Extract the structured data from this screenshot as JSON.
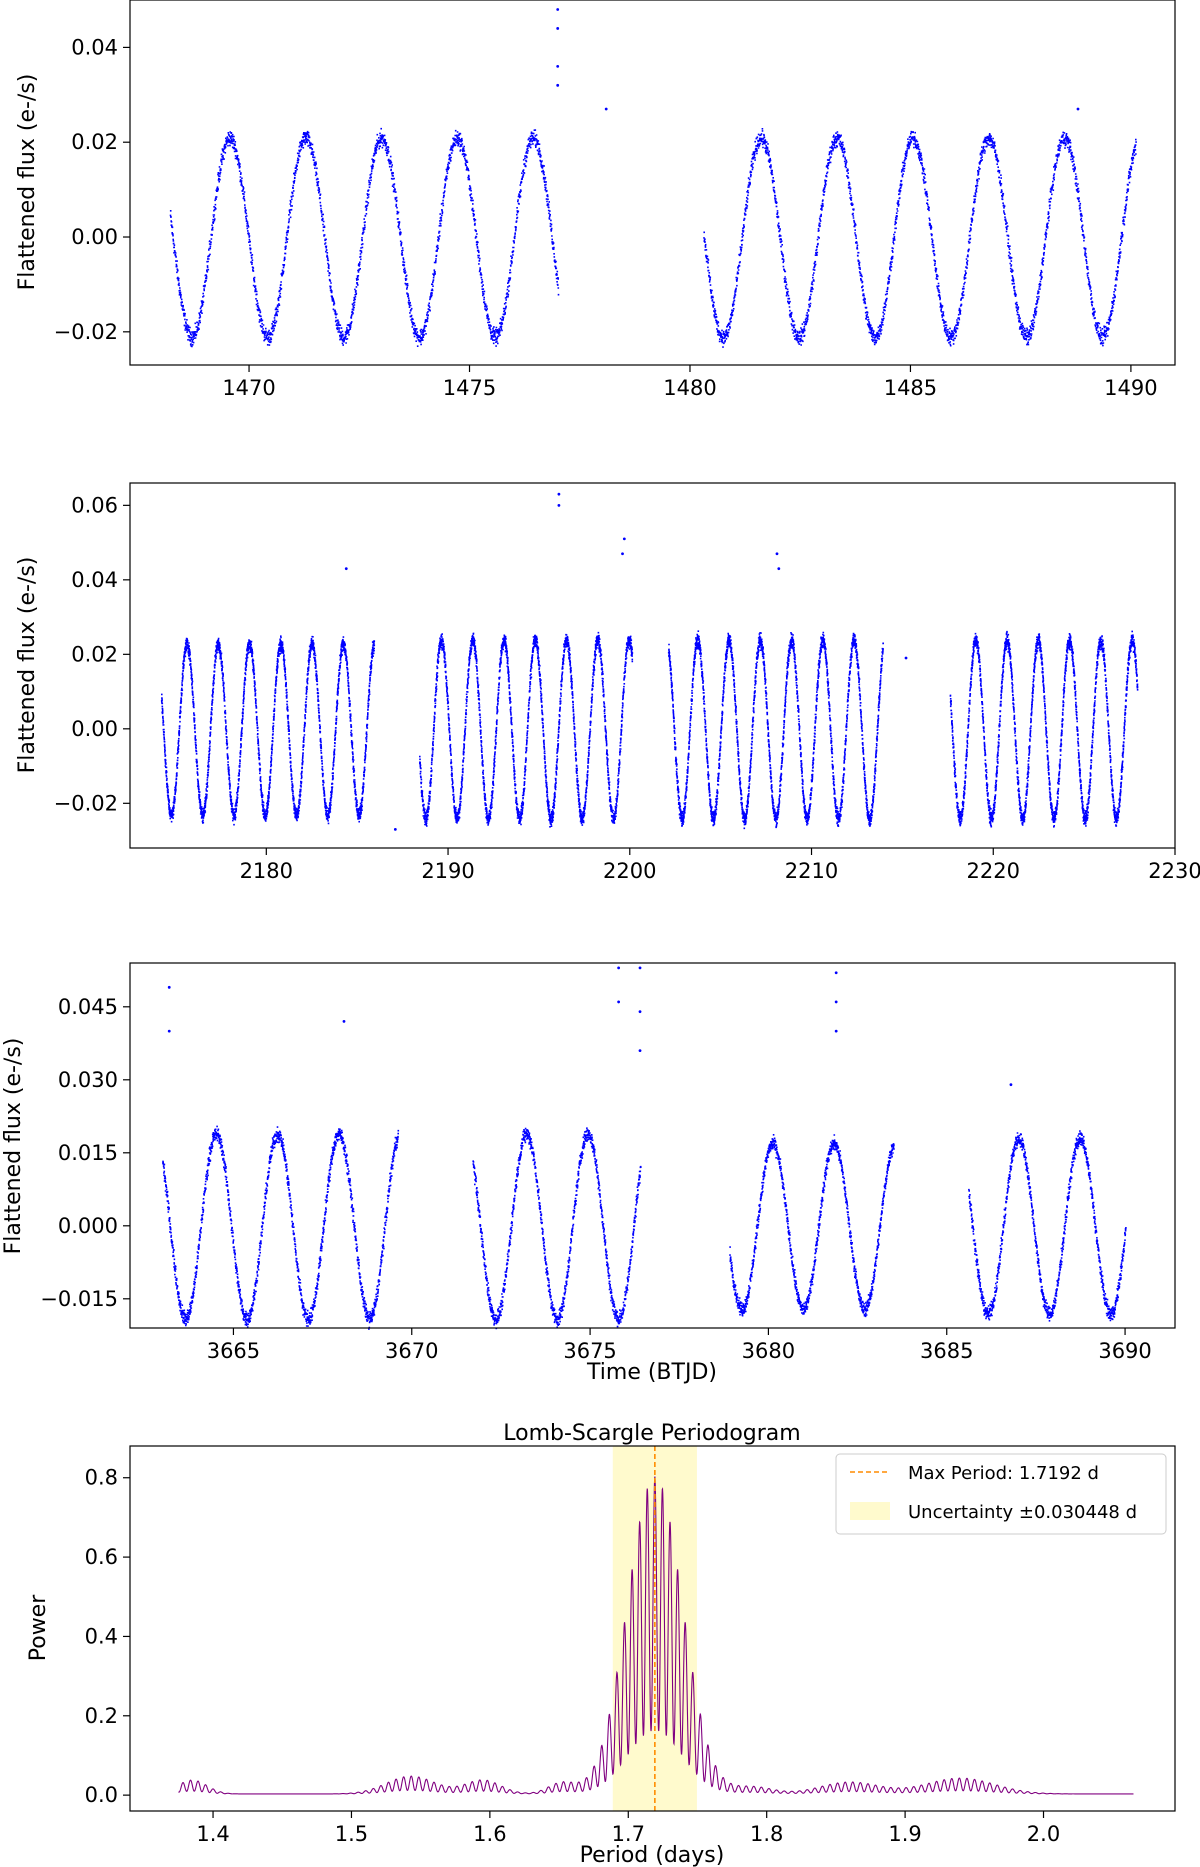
{
  "chart_data": [
    {
      "type": "scatter",
      "ylabel": "Flattened flux (e-/s)",
      "xlabel": "",
      "xlim": [
        1467.3,
        1491.0
      ],
      "ylim": [
        -0.027,
        0.05
      ],
      "xticks": [
        1470,
        1475,
        1480,
        1485,
        1490
      ],
      "xtick_labels": [
        "1470",
        "1475",
        "1480",
        "1485",
        "1490"
      ],
      "yticks": [
        -0.02,
        0.0,
        0.02,
        0.04
      ],
      "ytick_labels": [
        "−0.02",
        "0.00",
        "0.02",
        "0.04"
      ],
      "marker_color": "#0000ff",
      "series": [
        {
          "t_start": 1468.2,
          "t_end": 1477.0,
          "period": 1.72,
          "amplitude": 0.021,
          "phase_peak": 1469.55
        },
        {
          "t_start": 1480.3,
          "t_end": 1490.1,
          "period": 1.72,
          "amplitude": 0.021,
          "phase_peak": 1481.6
        }
      ],
      "outliers": [
        {
          "x": 1477.0,
          "y": 0.048
        },
        {
          "x": 1477.0,
          "y": 0.044
        },
        {
          "x": 1477.0,
          "y": 0.036
        },
        {
          "x": 1477.0,
          "y": 0.032
        },
        {
          "x": 1478.1,
          "y": 0.027
        },
        {
          "x": 1488.8,
          "y": 0.027
        }
      ],
      "grid": false
    },
    {
      "type": "scatter",
      "ylabel": "Flattened flux (e-/s)",
      "xlabel": "",
      "xlim": [
        2172.5,
        2230.0
      ],
      "ylim": [
        -0.032,
        0.066
      ],
      "xticks": [
        2180,
        2190,
        2200,
        2210,
        2220,
        2230
      ],
      "xtick_labels": [
        "2180",
        "2190",
        "2200",
        "2210",
        "2220",
        "2230"
      ],
      "yticks": [
        -0.02,
        0.0,
        0.02,
        0.04,
        0.06
      ],
      "ytick_labels": [
        "−0.02",
        "0.00",
        "0.02",
        "0.04",
        "0.06"
      ],
      "marker_color": "#0000ff",
      "series": [
        {
          "t_start": 2174.2,
          "t_end": 2185.9,
          "period": 1.72,
          "amplitude": 0.023,
          "phase_peak": 2175.6
        },
        {
          "t_start": 2188.4,
          "t_end": 2200.1,
          "period": 1.72,
          "amplitude": 0.024,
          "phase_peak": 2189.6
        },
        {
          "t_start": 2202.1,
          "t_end": 2213.9,
          "period": 1.72,
          "amplitude": 0.024,
          "phase_peak": 2203.7
        },
        {
          "t_start": 2217.6,
          "t_end": 2227.9,
          "period": 1.72,
          "amplitude": 0.024,
          "phase_peak": 2219.0
        }
      ],
      "outliers": [
        {
          "x": 2196.1,
          "y": 0.063
        },
        {
          "x": 2196.1,
          "y": 0.06
        },
        {
          "x": 2199.7,
          "y": 0.051
        },
        {
          "x": 2199.6,
          "y": 0.047
        },
        {
          "x": 2208.1,
          "y": 0.047
        },
        {
          "x": 2208.2,
          "y": 0.043
        },
        {
          "x": 2184.4,
          "y": 0.043
        },
        {
          "x": 2187.1,
          "y": -0.027
        },
        {
          "x": 2215.2,
          "y": 0.019
        }
      ],
      "grid": false
    },
    {
      "type": "scatter",
      "ylabel": "Flattened flux (e-/s)",
      "xlabel": "Time (BTJD)",
      "xlim": [
        3662.1,
        3691.4
      ],
      "ylim": [
        -0.021,
        0.054
      ],
      "xticks": [
        3665,
        3670,
        3675,
        3680,
        3685,
        3690
      ],
      "xtick_labels": [
        "3665",
        "3670",
        "3675",
        "3680",
        "3685",
        "3690"
      ],
      "yticks": [
        -0.015,
        0.0,
        0.015,
        0.03,
        0.045
      ],
      "ytick_labels": [
        "−0.015",
        "0.000",
        "0.015",
        "0.030",
        "0.045"
      ],
      "marker_color": "#0000ff",
      "series": [
        {
          "t_start": 3663.0,
          "t_end": 3669.6,
          "period": 1.72,
          "amplitude": 0.019,
          "phase_peak": 3664.5
        },
        {
          "t_start": 3671.7,
          "t_end": 3676.4,
          "period": 1.72,
          "amplitude": 0.019,
          "phase_peak": 3673.2
        },
        {
          "t_start": 3678.9,
          "t_end": 3683.5,
          "period": 1.72,
          "amplitude": 0.017,
          "phase_peak": 3680.1
        },
        {
          "t_start": 3685.6,
          "t_end": 3690.0,
          "period": 1.72,
          "amplitude": 0.018,
          "phase_peak": 3687.0
        }
      ],
      "outliers": [
        {
          "x": 3663.2,
          "y": 0.049
        },
        {
          "x": 3663.2,
          "y": 0.04
        },
        {
          "x": 3668.1,
          "y": 0.042
        },
        {
          "x": 3675.8,
          "y": 0.053
        },
        {
          "x": 3675.8,
          "y": 0.046
        },
        {
          "x": 3676.4,
          "y": 0.053
        },
        {
          "x": 3676.4,
          "y": 0.044
        },
        {
          "x": 3676.4,
          "y": 0.036
        },
        {
          "x": 3681.9,
          "y": 0.052
        },
        {
          "x": 3681.9,
          "y": 0.046
        },
        {
          "x": 3681.9,
          "y": 0.04
        },
        {
          "x": 3686.8,
          "y": 0.029
        }
      ],
      "grid": false
    },
    {
      "type": "line",
      "title": "Lomb-Scargle Periodogram",
      "xlabel": "Period (days)",
      "ylabel": "Power",
      "xlim": [
        1.34,
        2.095
      ],
      "ylim": [
        -0.04,
        0.88
      ],
      "xticks": [
        1.4,
        1.5,
        1.6,
        1.7,
        1.8,
        1.9,
        2.0
      ],
      "xtick_labels": [
        "1.4",
        "1.5",
        "1.6",
        "1.7",
        "1.8",
        "1.9",
        "2.0"
      ],
      "yticks": [
        0.0,
        0.2,
        0.4,
        0.6,
        0.8
      ],
      "ytick_labels": [
        "0.0",
        "0.2",
        "0.4",
        "0.6",
        "0.8"
      ],
      "line_color": "#800080",
      "x_range": [
        1.375,
        2.065
      ],
      "peak_period": 1.7192,
      "peak_power": 0.83,
      "max_period_line_color": "#ff8c00",
      "uncertainty_band": [
        1.6888,
        1.7496
      ],
      "uncertainty_color": "#fffacd",
      "legend": {
        "position": "top-right",
        "entries": [
          {
            "label": "Max Period: 1.7192 d",
            "style": "dashed-line",
            "color": "#ff8c00"
          },
          {
            "label": "Uncertainty ±0.030448 d",
            "style": "patch",
            "color": "#fffacd"
          }
        ]
      },
      "grid": false
    }
  ]
}
